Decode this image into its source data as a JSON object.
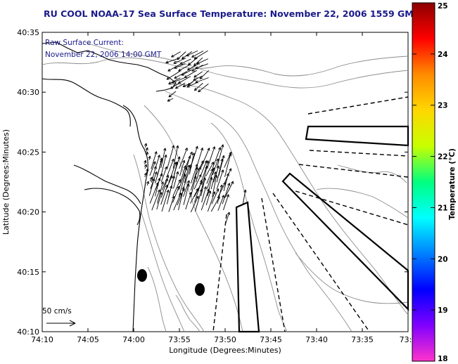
{
  "title": "RU COOL  NOAA-17  Sea Surface Temperature:  November 22, 2006 1559 GMT",
  "inset": {
    "line1": "Raw Surface Current:",
    "line2": "November 22, 2006 14:00 GMT"
  },
  "x_axis": {
    "label": "Longitude (Degrees:Minutes)",
    "ticks": [
      "74:10",
      "74:05",
      "74:00",
      "73:55",
      "73:50",
      "73:45",
      "73:40",
      "73:35",
      "73:3"
    ]
  },
  "y_axis": {
    "label": "Latitude (Degrees:Minutes)",
    "ticks": [
      "40:35",
      "40:30",
      "40:25",
      "40:20",
      "40:15",
      "40:10"
    ]
  },
  "colorbar": {
    "label": "Temperature (°C)",
    "ticks": [
      "25",
      "24",
      "23",
      "22",
      "21",
      "20",
      "19",
      "18"
    ],
    "colors": [
      "#8b0000",
      "#ff0000",
      "#ff8c00",
      "#ffd700",
      "#c8ff00",
      "#00ff80",
      "#00ffff",
      "#0080ff",
      "#0000ff",
      "#8000ff",
      "#ff33cc"
    ]
  },
  "scale_bar": {
    "label": "50 cm/s"
  },
  "colors": {
    "title": "#1a1a8c",
    "coastline": "#000000",
    "bathymetry": "#8c8c8c",
    "vectors": "#000000"
  }
}
